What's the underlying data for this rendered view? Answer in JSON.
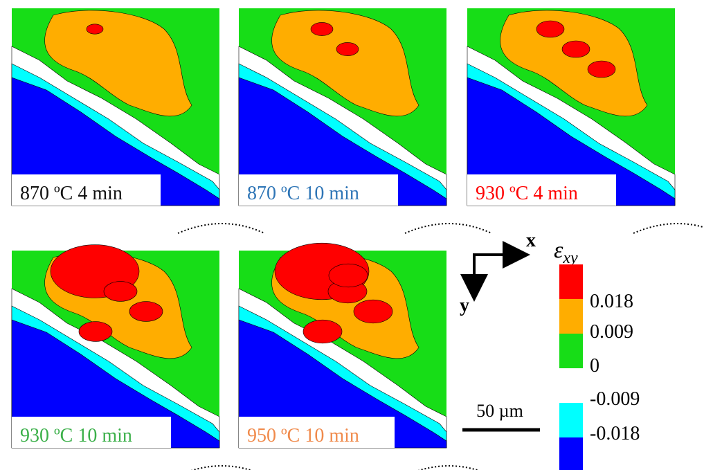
{
  "panels": [
    {
      "label": "870 ºC 4 min"
    },
    {
      "label": "870 ºC 10 min"
    },
    {
      "label": "930 ºC 4 min"
    },
    {
      "label": "930 ºC 10 min"
    },
    {
      "label": "950 ºC 10 min"
    }
  ],
  "axes": {
    "x": "x",
    "y": "y"
  },
  "colorbar": {
    "symbol": "ε",
    "subscript": "xy",
    "ticks": [
      "0.018",
      "0.009",
      "0",
      "-0.009",
      "-0.018"
    ]
  },
  "scale_bar": {
    "label": "50 µm"
  }
}
